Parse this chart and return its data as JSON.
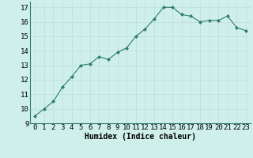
{
  "x": [
    0,
    1,
    2,
    3,
    4,
    5,
    6,
    7,
    8,
    9,
    10,
    11,
    12,
    13,
    14,
    15,
    16,
    17,
    18,
    19,
    20,
    21,
    22,
    23
  ],
  "y": [
    9.5,
    10.0,
    10.5,
    11.5,
    12.2,
    13.0,
    13.1,
    13.6,
    13.4,
    13.9,
    14.2,
    15.0,
    15.5,
    16.2,
    17.0,
    17.0,
    16.5,
    16.4,
    16.0,
    16.1,
    16.1,
    16.4,
    15.6,
    15.4
  ],
  "xlabel": "Humidex (Indice chaleur)",
  "xlim": [
    -0.5,
    23.5
  ],
  "ylim": [
    9,
    17.4
  ],
  "yticks": [
    9,
    10,
    11,
    12,
    13,
    14,
    15,
    16,
    17
  ],
  "xticks": [
    0,
    1,
    2,
    3,
    4,
    5,
    6,
    7,
    8,
    9,
    10,
    11,
    12,
    13,
    14,
    15,
    16,
    17,
    18,
    19,
    20,
    21,
    22,
    23
  ],
  "line_color": "#2e7d6e",
  "marker_color": "#2e7d6e",
  "bg_color": "#cff0ea",
  "grid_color": "#c0ddd8",
  "xlabel_fontsize": 7,
  "tick_fontsize": 6.5
}
